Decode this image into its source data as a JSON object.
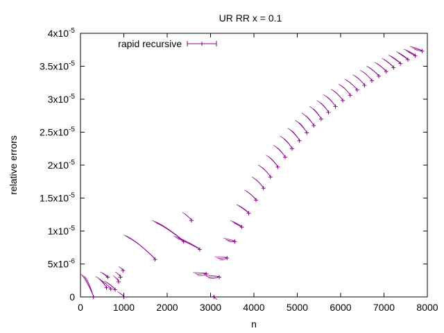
{
  "chart_data": {
    "type": "scatter",
    "title": "UR RR x = 0.1",
    "xlabel": "n",
    "ylabel": "relative errors",
    "xlim": [
      0,
      8000
    ],
    "ylim": [
      0,
      4e-05
    ],
    "grid": false,
    "legend_position": "top-left",
    "colors": {
      "series": "#8b008b",
      "axes": "#000000"
    },
    "x_ticks": [
      {
        "value": 0,
        "label": "0"
      },
      {
        "value": 1000,
        "label": "1000"
      },
      {
        "value": 2000,
        "label": "2000"
      },
      {
        "value": 3000,
        "label": "3000"
      },
      {
        "value": 4000,
        "label": "4000"
      },
      {
        "value": 5000,
        "label": "5000"
      },
      {
        "value": 6000,
        "label": "6000"
      },
      {
        "value": 7000,
        "label": "7000"
      },
      {
        "value": 8000,
        "label": "8000"
      }
    ],
    "y_ticks": [
      {
        "value": 0,
        "mant": "0",
        "exp": ""
      },
      {
        "value": 5e-06,
        "mant": "5x10",
        "exp": "-6"
      },
      {
        "value": 1e-05,
        "mant": "1x10",
        "exp": "-5"
      },
      {
        "value": 1.5e-05,
        "mant": "1.5x10",
        "exp": "-5"
      },
      {
        "value": 2e-05,
        "mant": "2x10",
        "exp": "-5"
      },
      {
        "value": 2.5e-05,
        "mant": "2.5x10",
        "exp": "-5"
      },
      {
        "value": 3e-05,
        "mant": "3x10",
        "exp": "-5"
      },
      {
        "value": 3.5e-05,
        "mant": "3.5x10",
        "exp": "-5"
      },
      {
        "value": 4e-05,
        "mant": "4x10",
        "exp": "-5"
      }
    ],
    "series": [
      {
        "name": "rapid recursive",
        "points": [
          {
            "x": 300,
            "y": 0,
            "x_low": 0,
            "y_high": 3.5e-06
          },
          {
            "x": 600,
            "y": 1.4e-06,
            "x_low": 350,
            "y_high": 3.1e-06
          },
          {
            "x": 700,
            "y": 1.2e-06,
            "x_low": 450,
            "y_high": 2.6e-06
          },
          {
            "x": 800,
            "y": 1.1e-06,
            "x_low": 550,
            "y_high": 2.4e-06
          },
          {
            "x": 1000,
            "y": 0,
            "x_low": 850,
            "y_high": 8e-07
          },
          {
            "x": 630,
            "y": 3e-06,
            "x_low": 450,
            "y_high": 3.8e-06
          },
          {
            "x": 880,
            "y": 2.3e-06,
            "x_low": 750,
            "y_high": 3.2e-06
          },
          {
            "x": 920,
            "y": 3e-06,
            "x_low": 800,
            "y_high": 3.8e-06
          },
          {
            "x": 980,
            "y": 4e-06,
            "x_low": 880,
            "y_high": 4.6e-06
          },
          {
            "x": 1720,
            "y": 5.7e-06,
            "x_low": 1000,
            "y_high": 9.4e-06
          },
          {
            "x": 2380,
            "y": 8.4e-06,
            "x_low": 1650,
            "y_high": 1.16e-05
          },
          {
            "x": 2750,
            "y": 7.2e-06,
            "x_low": 2150,
            "y_high": 9.2e-06
          },
          {
            "x": 2560,
            "y": 1.16e-05,
            "x_low": 2350,
            "y_high": 1.28e-05
          },
          {
            "x": 2900,
            "y": 3.5e-06,
            "x_low": 2600,
            "y_high": 3.7e-06
          },
          {
            "x": 3200,
            "y": 3e-06,
            "x_low": 2850,
            "y_high": 3.3e-06
          },
          {
            "x": 3080,
            "y": 0,
            "x_low": 3050,
            "y_high": 1e-07
          },
          {
            "x": 3380,
            "y": 5.9e-06,
            "x_low": 3100,
            "y_high": 6.1e-06
          },
          {
            "x": 3560,
            "y": 8.4e-06,
            "x_low": 3300,
            "y_high": 8.9e-06
          },
          {
            "x": 3720,
            "y": 1.06e-05,
            "x_low": 3450,
            "y_high": 1.16e-05
          },
          {
            "x": 3880,
            "y": 1.27e-05,
            "x_low": 3600,
            "y_high": 1.4e-05
          },
          {
            "x": 4050,
            "y": 1.47e-05,
            "x_low": 3780,
            "y_high": 1.62e-05
          },
          {
            "x": 4220,
            "y": 1.65e-05,
            "x_low": 3950,
            "y_high": 1.82e-05
          },
          {
            "x": 4380,
            "y": 1.82e-05,
            "x_low": 4100,
            "y_high": 2e-05
          },
          {
            "x": 4550,
            "y": 1.97e-05,
            "x_low": 4280,
            "y_high": 2.15e-05
          },
          {
            "x": 4720,
            "y": 2.12e-05,
            "x_low": 4450,
            "y_high": 2.3e-05
          },
          {
            "x": 4880,
            "y": 2.25e-05,
            "x_low": 4600,
            "y_high": 2.44e-05
          },
          {
            "x": 5050,
            "y": 2.37e-05,
            "x_low": 4780,
            "y_high": 2.56e-05
          },
          {
            "x": 5220,
            "y": 2.49e-05,
            "x_low": 4950,
            "y_high": 2.68e-05
          },
          {
            "x": 5380,
            "y": 2.6e-05,
            "x_low": 5100,
            "y_high": 2.79e-05
          },
          {
            "x": 5550,
            "y": 2.7e-05,
            "x_low": 5280,
            "y_high": 2.89e-05
          },
          {
            "x": 5720,
            "y": 2.8e-05,
            "x_low": 5450,
            "y_high": 2.98e-05
          },
          {
            "x": 5880,
            "y": 2.89e-05,
            "x_low": 5600,
            "y_high": 3.07e-05
          },
          {
            "x": 6050,
            "y": 2.98e-05,
            "x_low": 5780,
            "y_high": 3.15e-05
          },
          {
            "x": 6220,
            "y": 3.06e-05,
            "x_low": 5950,
            "y_high": 3.23e-05
          },
          {
            "x": 6380,
            "y": 3.14e-05,
            "x_low": 6100,
            "y_high": 3.3e-05
          },
          {
            "x": 6550,
            "y": 3.21e-05,
            "x_low": 6280,
            "y_high": 3.37e-05
          },
          {
            "x": 6720,
            "y": 3.28e-05,
            "x_low": 6450,
            "y_high": 3.44e-05
          },
          {
            "x": 6880,
            "y": 3.35e-05,
            "x_low": 6600,
            "y_high": 3.5e-05
          },
          {
            "x": 7050,
            "y": 3.42e-05,
            "x_low": 6780,
            "y_high": 3.56e-05
          },
          {
            "x": 7220,
            "y": 3.48e-05,
            "x_low": 6950,
            "y_high": 3.62e-05
          },
          {
            "x": 7380,
            "y": 3.54e-05,
            "x_low": 7100,
            "y_high": 3.67e-05
          },
          {
            "x": 7550,
            "y": 3.6e-05,
            "x_low": 7280,
            "y_high": 3.72e-05
          },
          {
            "x": 7720,
            "y": 3.66e-05,
            "x_low": 7450,
            "y_high": 3.76e-05
          },
          {
            "x": 7880,
            "y": 3.73e-05,
            "x_low": 7600,
            "y_high": 3.8e-05
          }
        ]
      }
    ]
  }
}
